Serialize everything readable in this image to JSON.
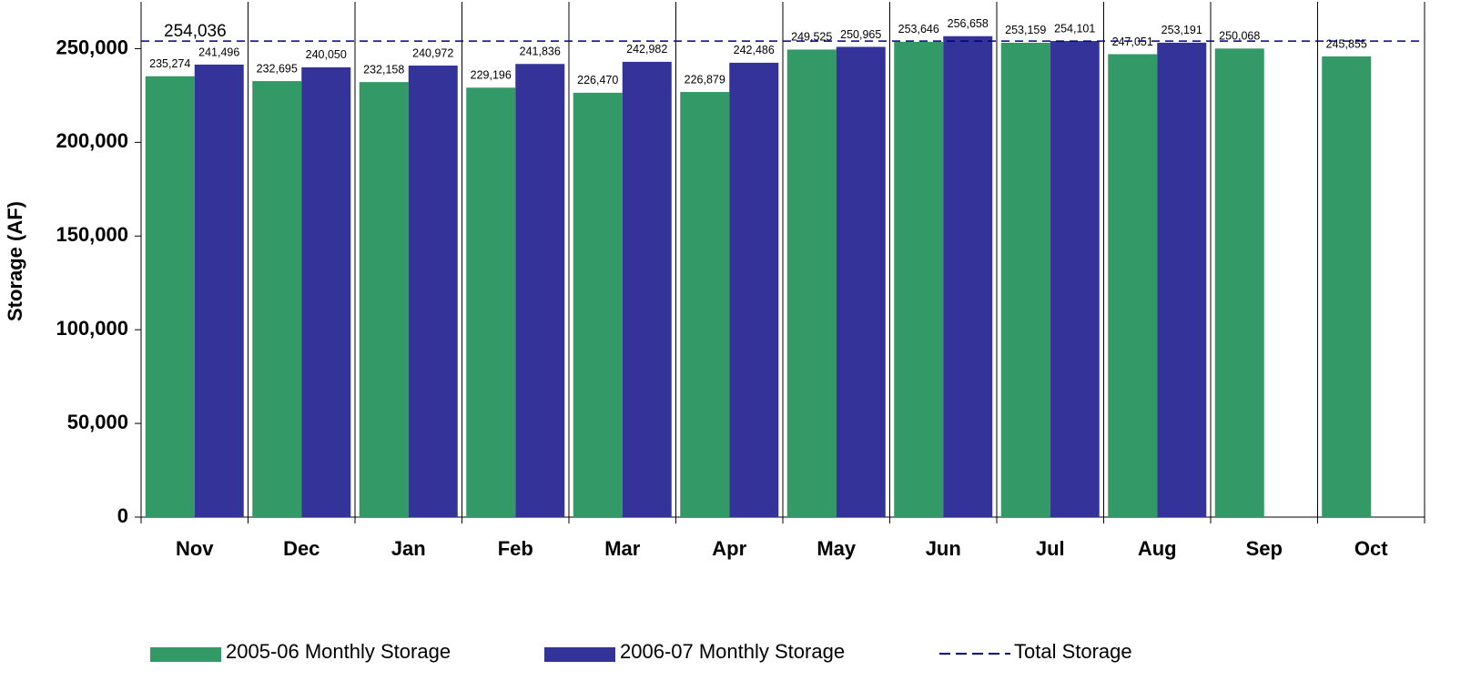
{
  "chart_data": {
    "type": "bar",
    "y_label": "Storage (AF)",
    "categories": [
      "Nov",
      "Dec",
      "Jan",
      "Feb",
      "Mar",
      "Apr",
      "May",
      "Jun",
      "Jul",
      "Aug",
      "Sep",
      "Oct"
    ],
    "series": [
      {
        "name": "2005-06 Monthly Storage",
        "color": "#339966",
        "values": [
          235274,
          232695,
          232158,
          229196,
          226470,
          226879,
          249525,
          253646,
          253159,
          247051,
          250068,
          245855
        ],
        "value_labels": [
          "235,274",
          "232,695",
          "232,158",
          "229,196",
          "226,470",
          "226,879",
          "249,525",
          "253,646",
          "253,159",
          "247,051",
          "250,068",
          "245,855"
        ]
      },
      {
        "name": "2006-07 Monthly Storage",
        "color": "#333399",
        "values": [
          241496,
          240050,
          240972,
          241836,
          242982,
          242486,
          250965,
          256658,
          254101,
          253191,
          null,
          null
        ],
        "value_labels": [
          "241,496",
          "240,050",
          "240,972",
          "241,836",
          "242,982",
          "242,486",
          "250,965",
          "256,658",
          "254,101",
          "253,191",
          null,
          null
        ]
      }
    ],
    "reference_line": {
      "name": "Total Storage",
      "value": 254036,
      "value_label": "254,036",
      "color": "#000080"
    },
    "ylim": [
      0,
      275000
    ],
    "yticks": [
      {
        "value": 0,
        "label": "0"
      },
      {
        "value": 50000,
        "label": "50,000"
      },
      {
        "value": 100000,
        "label": "100,000"
      },
      {
        "value": 150000,
        "label": "150,000"
      },
      {
        "value": 200000,
        "label": "200,000"
      },
      {
        "value": 250000,
        "label": "250,000"
      }
    ]
  }
}
